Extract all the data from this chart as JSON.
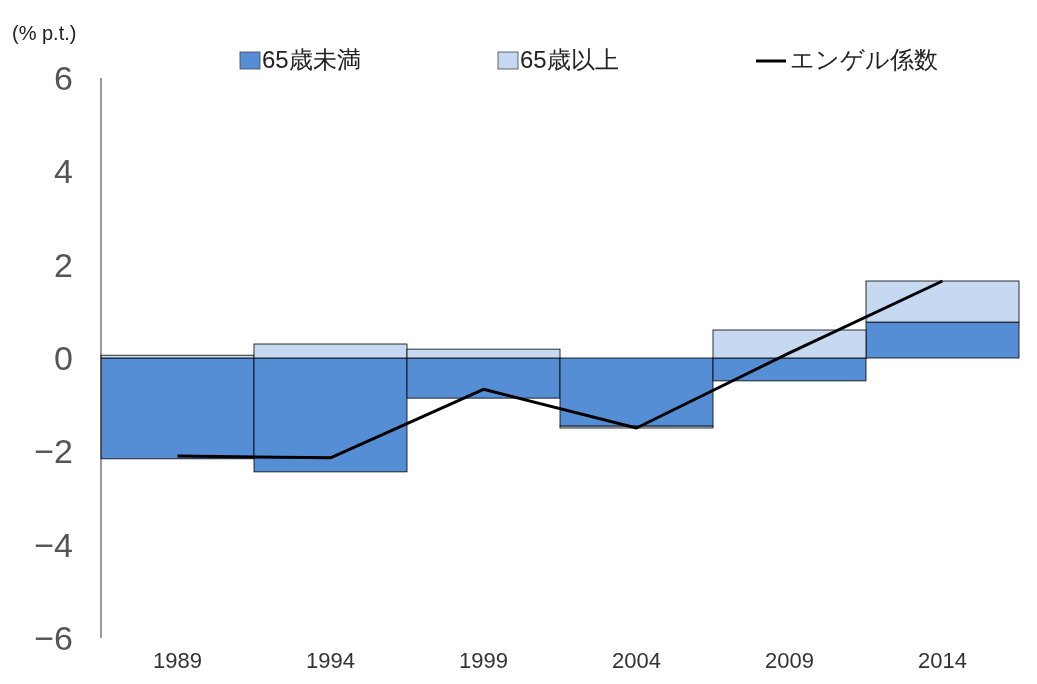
{
  "chart_data": {
    "type": "bar",
    "stacked": true,
    "ylabel": "(% p.t.)",
    "categories": [
      "1989",
      "1994",
      "1999",
      "2004",
      "2009",
      "2014"
    ],
    "series": [
      {
        "name": "65歳未満",
        "color": "#558ed5",
        "values": [
          -2.16,
          -2.44,
          -0.86,
          -1.46,
          -0.49,
          0.77
        ]
      },
      {
        "name": "65歳以上",
        "color": "#c6d9f1",
        "values": [
          0.06,
          0.3,
          0.19,
          -0.04,
          0.6,
          0.88
        ]
      },
      {
        "name": "エンゲル係数",
        "type": "line",
        "color": "#000000",
        "values": [
          -2.1,
          -2.14,
          -0.67,
          -1.5,
          0.11,
          1.65
        ]
      }
    ],
    "ylim": [
      -6,
      6
    ],
    "yticks": [
      {
        "value": -6,
        "label": "−6"
      },
      {
        "value": -4,
        "label": "−4"
      },
      {
        "value": -2,
        "label": "−2"
      },
      0,
      2,
      4,
      6
    ],
    "grid": false,
    "legend": "top",
    "marker": "none",
    "line_style": "solid"
  }
}
